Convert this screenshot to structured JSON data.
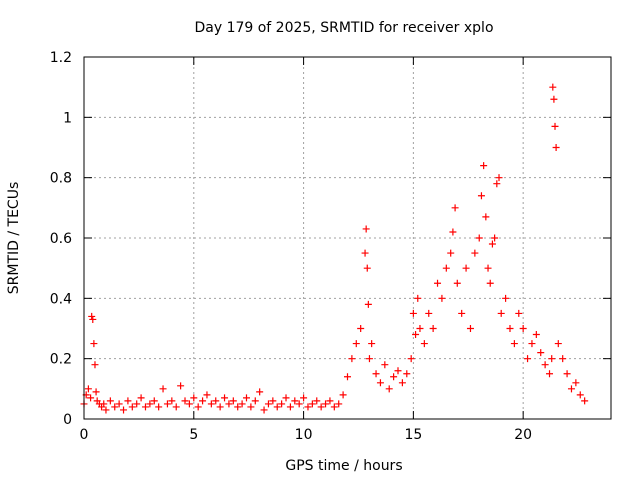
{
  "chart_data": {
    "type": "scatter",
    "title": "Day 179 of 2025, SRMTID for receiver xplo",
    "xlabel": "GPS time / hours",
    "ylabel": "SRMTID / TECUs",
    "xlim": [
      0,
      24
    ],
    "ylim": [
      0,
      1.2
    ],
    "grid": true,
    "marker": "+",
    "color": "#ff0000",
    "x_ticks": [
      0,
      5,
      10,
      15,
      20
    ],
    "x_tick_labels": [
      "0",
      "5",
      "10",
      "15",
      "20"
    ],
    "y_ticks": [
      0,
      0.2,
      0.4,
      0.6,
      0.8,
      1.0,
      1.2
    ],
    "y_tick_labels": [
      "0",
      "0.2",
      "0.4",
      "0.6",
      "0.8",
      "1",
      "1.2"
    ],
    "series": [
      {
        "name": "SRMTID",
        "x": [
          0.0,
          0.1,
          0.2,
          0.3,
          0.35,
          0.4,
          0.45,
          0.5,
          0.55,
          0.6,
          0.7,
          0.8,
          0.9,
          1.0,
          1.2,
          1.4,
          1.6,
          1.8,
          2.0,
          2.2,
          2.4,
          2.6,
          2.8,
          3.0,
          3.2,
          3.4,
          3.6,
          3.8,
          4.0,
          4.2,
          4.4,
          4.6,
          4.8,
          5.0,
          5.2,
          5.4,
          5.6,
          5.8,
          6.0,
          6.2,
          6.4,
          6.6,
          6.8,
          7.0,
          7.2,
          7.4,
          7.6,
          7.8,
          8.0,
          8.2,
          8.4,
          8.6,
          8.8,
          9.0,
          9.2,
          9.4,
          9.6,
          9.8,
          10.0,
          10.2,
          10.4,
          10.6,
          10.8,
          11.0,
          11.2,
          11.4,
          11.6,
          11.8,
          12.0,
          12.2,
          12.4,
          12.6,
          12.8,
          12.85,
          12.9,
          12.95,
          13.0,
          13.1,
          13.3,
          13.5,
          13.7,
          13.9,
          14.1,
          14.3,
          14.5,
          14.7,
          14.9,
          15.0,
          15.1,
          15.2,
          15.3,
          15.5,
          15.7,
          15.9,
          16.1,
          16.3,
          16.5,
          16.7,
          16.8,
          16.9,
          17.0,
          17.2,
          17.4,
          17.6,
          17.8,
          18.0,
          18.1,
          18.2,
          18.3,
          18.4,
          18.5,
          18.6,
          18.7,
          18.8,
          18.9,
          19.0,
          19.2,
          19.4,
          19.6,
          19.8,
          20.0,
          20.2,
          20.4,
          20.6,
          20.8,
          21.0,
          21.2,
          21.3,
          21.35,
          21.4,
          21.45,
          21.5,
          21.6,
          21.8,
          22.0,
          22.2,
          22.4,
          22.6,
          22.8
        ],
        "y": [
          0.05,
          0.08,
          0.1,
          0.07,
          0.34,
          0.33,
          0.25,
          0.18,
          0.09,
          0.06,
          0.05,
          0.04,
          0.05,
          0.03,
          0.06,
          0.04,
          0.05,
          0.03,
          0.06,
          0.04,
          0.05,
          0.07,
          0.04,
          0.05,
          0.06,
          0.04,
          0.1,
          0.05,
          0.06,
          0.04,
          0.11,
          0.06,
          0.05,
          0.07,
          0.04,
          0.06,
          0.08,
          0.05,
          0.06,
          0.04,
          0.07,
          0.05,
          0.06,
          0.04,
          0.05,
          0.07,
          0.04,
          0.06,
          0.09,
          0.03,
          0.05,
          0.06,
          0.04,
          0.05,
          0.07,
          0.04,
          0.06,
          0.05,
          0.07,
          0.04,
          0.05,
          0.06,
          0.04,
          0.05,
          0.06,
          0.04,
          0.05,
          0.08,
          0.14,
          0.2,
          0.25,
          0.3,
          0.55,
          0.63,
          0.5,
          0.38,
          0.2,
          0.25,
          0.15,
          0.12,
          0.18,
          0.1,
          0.14,
          0.16,
          0.12,
          0.15,
          0.2,
          0.35,
          0.28,
          0.4,
          0.3,
          0.25,
          0.35,
          0.3,
          0.45,
          0.4,
          0.5,
          0.55,
          0.62,
          0.7,
          0.45,
          0.35,
          0.5,
          0.3,
          0.55,
          0.6,
          0.74,
          0.84,
          0.67,
          0.5,
          0.45,
          0.58,
          0.6,
          0.78,
          0.8,
          0.35,
          0.4,
          0.3,
          0.25,
          0.35,
          0.3,
          0.2,
          0.25,
          0.28,
          0.22,
          0.18,
          0.15,
          0.2,
          1.1,
          1.06,
          0.97,
          0.9,
          0.25,
          0.2,
          0.15,
          0.1,
          0.12,
          0.08,
          0.06
        ]
      }
    ]
  }
}
